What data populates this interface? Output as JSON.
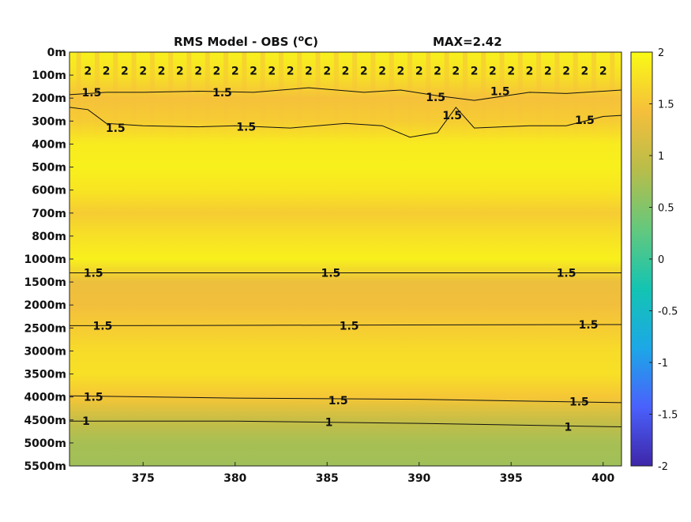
{
  "chart_data": {
    "type": "heatmap",
    "title": "RMS Model - OBS (",
    "title_unit": "o",
    "title_unit_tail": "C)",
    "max_label": "MAX=2.42",
    "x_ticks": [
      375,
      380,
      385,
      390,
      395,
      400
    ],
    "x_range": [
      371,
      401
    ],
    "y_tick_labels": [
      "0m",
      "100m",
      "200m",
      "300m",
      "400m",
      "500m",
      "600m",
      "700m",
      "800m",
      "1000m",
      "1500m",
      "2000m",
      "2500m",
      "3000m",
      "3500m",
      "4000m",
      "4500m",
      "5000m",
      "5500m"
    ],
    "colorbar": {
      "range": [
        -2,
        2
      ],
      "ticks": [
        2,
        1.5,
        1,
        0.5,
        0,
        -0.5,
        -1,
        -1.5,
        -2
      ],
      "colors": [
        "#3e26a8",
        "#4a61fc",
        "#1ca8e6",
        "#14c4b2",
        "#64c87d",
        "#b7bd4a",
        "#f5bf3b",
        "#f9fa15"
      ]
    },
    "field_by_depth_level": [
      {
        "level": 0,
        "value": 1.9
      },
      {
        "level": 1,
        "value": 1.75
      },
      {
        "level": 2,
        "value": 1.45
      },
      {
        "level": 3,
        "value": 1.55
      },
      {
        "level": 4,
        "value": 1.85
      },
      {
        "level": 5,
        "value": 1.9
      },
      {
        "level": 6,
        "value": 1.8
      },
      {
        "level": 7,
        "value": 1.55
      },
      {
        "level": 8,
        "value": 1.75
      },
      {
        "level": 9,
        "value": 1.9
      },
      {
        "level": 10,
        "value": 1.35
      },
      {
        "level": 11,
        "value": 1.4
      },
      {
        "level": 12,
        "value": 1.55
      },
      {
        "level": 13,
        "value": 1.7
      },
      {
        "level": 14,
        "value": 1.75
      },
      {
        "level": 15,
        "value": 1.5
      },
      {
        "level": 16,
        "value": 1.0
      },
      {
        "level": 17,
        "value": 0.75
      },
      {
        "level": 18,
        "value": 0.7
      }
    ],
    "contour_labels": [
      {
        "text": "2",
        "x": 372.0,
        "level": 0.8
      },
      {
        "text": "2",
        "x": 373.0,
        "level": 0.8
      },
      {
        "text": "2",
        "x": 374.0,
        "level": 0.8
      },
      {
        "text": "2",
        "x": 375.0,
        "level": 0.8
      },
      {
        "text": "2",
        "x": 376.0,
        "level": 0.8
      },
      {
        "text": "2",
        "x": 377.0,
        "level": 0.8
      },
      {
        "text": "2",
        "x": 378.0,
        "level": 0.8
      },
      {
        "text": "2",
        "x": 379.0,
        "level": 0.8
      },
      {
        "text": "2",
        "x": 380.0,
        "level": 0.8
      },
      {
        "text": "2",
        "x": 381.0,
        "level": 0.8
      },
      {
        "text": "2",
        "x": 382.0,
        "level": 0.8
      },
      {
        "text": "2",
        "x": 383.0,
        "level": 0.8
      },
      {
        "text": "2",
        "x": 384.0,
        "level": 0.8
      },
      {
        "text": "2",
        "x": 385.0,
        "level": 0.8
      },
      {
        "text": "2",
        "x": 386.0,
        "level": 0.8
      },
      {
        "text": "2",
        "x": 387.0,
        "level": 0.8
      },
      {
        "text": "2",
        "x": 388.0,
        "level": 0.8
      },
      {
        "text": "2",
        "x": 389.0,
        "level": 0.8
      },
      {
        "text": "2",
        "x": 390.0,
        "level": 0.8
      },
      {
        "text": "2",
        "x": 391.0,
        "level": 0.8
      },
      {
        "text": "2",
        "x": 392.0,
        "level": 0.8
      },
      {
        "text": "2",
        "x": 393.0,
        "level": 0.8
      },
      {
        "text": "2",
        "x": 394.0,
        "level": 0.8
      },
      {
        "text": "2",
        "x": 395.0,
        "level": 0.8
      },
      {
        "text": "2",
        "x": 396.0,
        "level": 0.8
      },
      {
        "text": "2",
        "x": 397.0,
        "level": 0.8
      },
      {
        "text": "2",
        "x": 398.0,
        "level": 0.8
      },
      {
        "text": "2",
        "x": 399.0,
        "level": 0.8
      },
      {
        "text": "2",
        "x": 400.0,
        "level": 0.8
      },
      {
        "text": "1.5",
        "x": 372.2,
        "level": 1.75
      },
      {
        "text": "1.5",
        "x": 379.3,
        "level": 1.75
      },
      {
        "text": "1.5",
        "x": 390.9,
        "level": 1.95
      },
      {
        "text": "1.5",
        "x": 394.4,
        "level": 1.7
      },
      {
        "text": "1.5",
        "x": 373.5,
        "level": 3.3
      },
      {
        "text": "1.5",
        "x": 380.6,
        "level": 3.25
      },
      {
        "text": "1.5",
        "x": 391.8,
        "level": 2.75
      },
      {
        "text": "1.5",
        "x": 399.0,
        "level": 2.95
      },
      {
        "text": "1.5",
        "x": 372.3,
        "level": 9.6
      },
      {
        "text": "1.5",
        "x": 385.2,
        "level": 9.6
      },
      {
        "text": "1.5",
        "x": 398.0,
        "level": 9.6
      },
      {
        "text": "1.5",
        "x": 372.8,
        "level": 11.9
      },
      {
        "text": "1.5",
        "x": 386.2,
        "level": 11.9
      },
      {
        "text": "1.5",
        "x": 399.2,
        "level": 11.85
      },
      {
        "text": "1.5",
        "x": 372.3,
        "level": 15.0
      },
      {
        "text": "1.5",
        "x": 385.6,
        "level": 15.15
      },
      {
        "text": "1.5",
        "x": 398.7,
        "level": 15.2
      },
      {
        "text": "1",
        "x": 371.9,
        "level": 16.05
      },
      {
        "text": "1",
        "x": 385.1,
        "level": 16.1
      },
      {
        "text": "1",
        "x": 398.1,
        "level": 16.3
      }
    ],
    "contour_lines": [
      {
        "level_value": 1.5,
        "points": [
          [
            371,
            1.85
          ],
          [
            373,
            1.75
          ],
          [
            375,
            1.75
          ],
          [
            378,
            1.7
          ],
          [
            381,
            1.75
          ],
          [
            384,
            1.55
          ],
          [
            387,
            1.75
          ],
          [
            389,
            1.65
          ],
          [
            391,
            1.9
          ],
          [
            393,
            2.1
          ],
          [
            396,
            1.75
          ],
          [
            398,
            1.8
          ],
          [
            401,
            1.65
          ]
        ]
      },
      {
        "level_value": 1.5,
        "points": [
          [
            371,
            2.4
          ],
          [
            372,
            2.5
          ],
          [
            373,
            3.1
          ],
          [
            375,
            3.2
          ],
          [
            378,
            3.25
          ],
          [
            380,
            3.2
          ],
          [
            383,
            3.3
          ],
          [
            386,
            3.1
          ],
          [
            388,
            3.2
          ],
          [
            389.5,
            3.7
          ],
          [
            391,
            3.5
          ],
          [
            392,
            2.4
          ],
          [
            393,
            3.3
          ],
          [
            396,
            3.2
          ],
          [
            398,
            3.2
          ],
          [
            400,
            2.8
          ],
          [
            401,
            2.75
          ]
        ]
      },
      {
        "level_value": 1.5,
        "points": [
          [
            371,
            9.6
          ],
          [
            401,
            9.6
          ]
        ]
      },
      {
        "level_value": 1.5,
        "points": [
          [
            371,
            11.9
          ],
          [
            401,
            11.85
          ]
        ]
      },
      {
        "level_value": 1.5,
        "points": [
          [
            371,
            14.95
          ],
          [
            380,
            15.05
          ],
          [
            390,
            15.1
          ],
          [
            401,
            15.25
          ]
        ]
      },
      {
        "level_value": 1,
        "points": [
          [
            371,
            16.05
          ],
          [
            380,
            16.05
          ],
          [
            390,
            16.15
          ],
          [
            401,
            16.3
          ]
        ]
      }
    ]
  }
}
